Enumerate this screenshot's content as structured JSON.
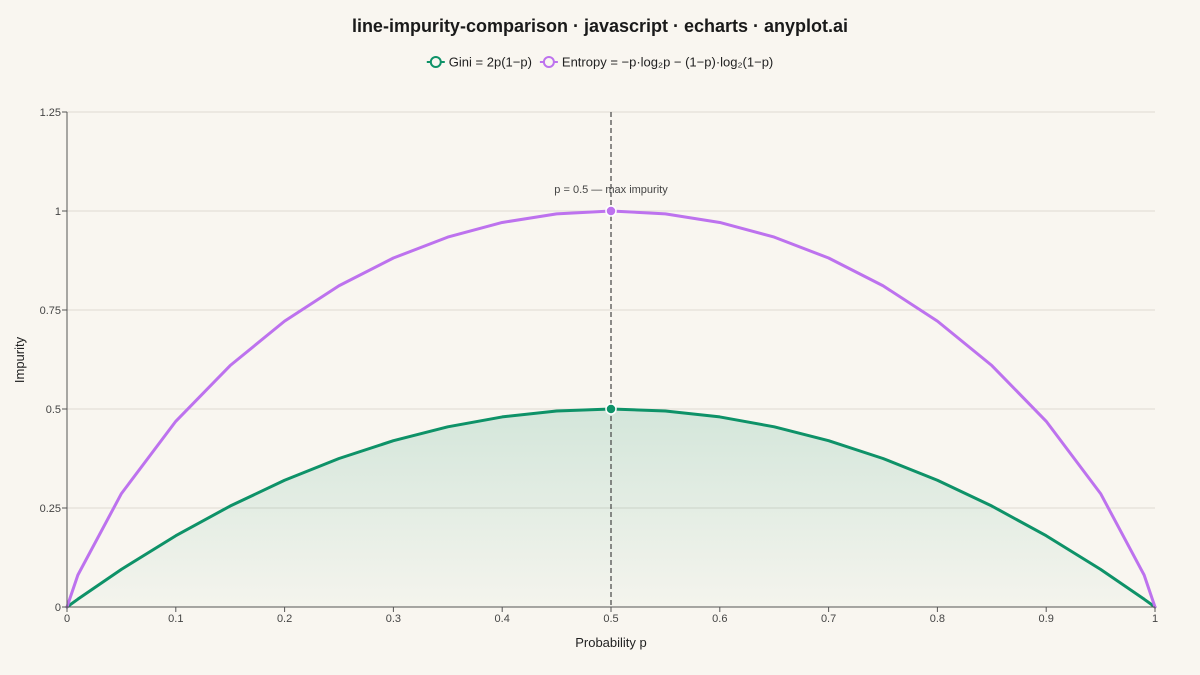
{
  "chart_data": {
    "type": "line",
    "title": "line-impurity-comparison · javascript · echarts · anyplot.ai",
    "xlabel": "Probability p",
    "ylabel": "Impurity",
    "xlim": [
      0,
      1
    ],
    "ylim": [
      0,
      1.25
    ],
    "x_ticks": [
      "0",
      "0.1",
      "0.2",
      "0.3",
      "0.4",
      "0.5",
      "0.6",
      "0.7",
      "0.8",
      "0.9",
      "1"
    ],
    "y_ticks": [
      "0",
      "0.25",
      "0.5",
      "0.75",
      "1",
      "1.25"
    ],
    "grid": true,
    "legend_position": "top-center",
    "x": [
      0,
      0.01,
      0.05,
      0.1,
      0.15,
      0.2,
      0.25,
      0.3,
      0.35,
      0.4,
      0.45,
      0.5,
      0.55,
      0.6,
      0.65,
      0.7,
      0.75,
      0.8,
      0.85,
      0.9,
      0.95,
      0.99,
      1
    ],
    "series": [
      {
        "name": "Gini = 2p(1−p)",
        "color": "#0e9268",
        "area": true,
        "values": [
          0,
          0.0198,
          0.095,
          0.18,
          0.255,
          0.32,
          0.375,
          0.42,
          0.455,
          0.48,
          0.495,
          0.5,
          0.495,
          0.48,
          0.455,
          0.42,
          0.375,
          0.32,
          0.255,
          0.18,
          0.095,
          0.0198,
          0
        ]
      },
      {
        "name": "Entropy = −p·log₂p − (1−p)·log₂(1−p)",
        "color": "#bd72ee",
        "area": false,
        "values": [
          0,
          0.0808,
          0.2864,
          0.469,
          0.6098,
          0.7219,
          0.8113,
          0.8813,
          0.9341,
          0.971,
          0.9928,
          1,
          0.9928,
          0.971,
          0.9341,
          0.8813,
          0.8113,
          0.7219,
          0.6098,
          0.469,
          0.2864,
          0.0808,
          0
        ]
      }
    ],
    "markline": {
      "x": 0.5,
      "label": "p = 0.5 — max impurity"
    },
    "max_points": [
      {
        "series": 0,
        "x": 0.5,
        "y": 0.5
      },
      {
        "series": 1,
        "x": 0.5,
        "y": 1
      }
    ]
  }
}
